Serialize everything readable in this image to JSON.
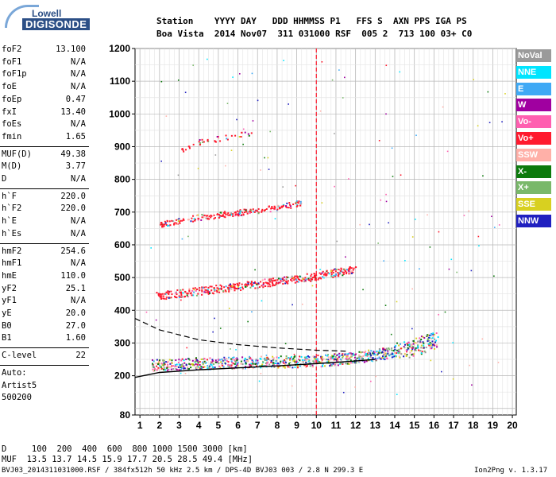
{
  "logo": {
    "top": "Lowell",
    "bottom": "DIGISONDE"
  },
  "header": {
    "row1": "Station    YYYY DAY   DDD HHMMSS P1   FFS S  AXN PPS IGA PS",
    "row2": "Boa Vista  2014 Nov07  311 031000 RSF  005 2  713 100 03+ C0"
  },
  "params_group1": [
    {
      "name": "foF2",
      "value": "13.100"
    },
    {
      "name": "foF1",
      "value": "N/A"
    },
    {
      "name": "foF1p",
      "value": "N/A"
    },
    {
      "name": "foE",
      "value": "N/A"
    },
    {
      "name": "foEp",
      "value": "0.47"
    },
    {
      "name": "fxI",
      "value": "13.40"
    },
    {
      "name": "foEs",
      "value": "N/A"
    },
    {
      "name": "fmin",
      "value": "1.65"
    }
  ],
  "params_group2": [
    {
      "name": "MUF(D)",
      "value": "49.38"
    },
    {
      "name": "M(D)",
      "value": "3.77"
    },
    {
      "name": "D",
      "value": "N/A"
    }
  ],
  "params_group3": [
    {
      "name": "h`F",
      "value": "220.0"
    },
    {
      "name": "h`F2",
      "value": "220.0"
    },
    {
      "name": "h`E",
      "value": "N/A"
    },
    {
      "name": "h`Es",
      "value": "N/A"
    }
  ],
  "params_group4": [
    {
      "name": "hmF2",
      "value": "254.6"
    },
    {
      "name": "hmF1",
      "value": "N/A"
    },
    {
      "name": "hmE",
      "value": "110.0"
    },
    {
      "name": "yF2",
      "value": "25.1"
    },
    {
      "name": "yF1",
      "value": "N/A"
    },
    {
      "name": "yE",
      "value": "20.0"
    },
    {
      "name": "B0",
      "value": "27.0"
    },
    {
      "name": "B1",
      "value": "1.60"
    }
  ],
  "c_level": {
    "name": "C-level",
    "value": "22"
  },
  "auto": {
    "line1": "Auto:",
    "line2": "Artist5",
    "line3": "500200"
  },
  "footer": {
    "d_row": "D     100  200  400  600  800 1000 1500 3000 [km]",
    "muf_row": "MUF  13.5 13.7 14.5 15.9 17.7 20.5 28.5 49.4 [MHz]",
    "file_row": "BVJ03_2014311031000.RSF / 384fx512h 50 kHz 2.5 km / DPS-4D BVJ03 003 / 2.8 N 299.3 E",
    "version": "Ion2Png v. 1.3.17"
  },
  "legend": [
    {
      "label": "NoVal",
      "color": "#9a9a9a"
    },
    {
      "label": "NNE",
      "color": "#00e5ff"
    },
    {
      "label": "E",
      "color": "#3fa9f5"
    },
    {
      "label": "W",
      "color": "#a000a0"
    },
    {
      "label": "Vo-",
      "color": "#ff5fb0"
    },
    {
      "label": "Vo+",
      "color": "#ff1a2e"
    },
    {
      "label": "SSW",
      "color": "#ffb0a8"
    },
    {
      "label": "X-",
      "color": "#0c7a0c"
    },
    {
      "label": "X+",
      "color": "#79b86a"
    },
    {
      "label": "SSE",
      "color": "#d8d020"
    },
    {
      "label": "NNW",
      "color": "#2020c0"
    }
  ],
  "chart_data": {
    "type": "scatter",
    "xlim": [
      0.75,
      20.2
    ],
    "ylim": [
      80,
      1200
    ],
    "x_ticks": [
      "1",
      "2",
      "3",
      "4",
      "5",
      "6",
      "7",
      "8",
      "9",
      "10",
      "11",
      "12",
      "13",
      "14",
      "15",
      "16",
      "17",
      "18",
      "19",
      "20"
    ],
    "y_ticks": [
      "80",
      "200",
      "300",
      "400",
      "500",
      "600",
      "700",
      "800",
      "900",
      "1000",
      "1100",
      "1200"
    ],
    "grid": true,
    "traces": [
      {
        "name": "F2 trace 1st hop",
        "x": [
          1.6,
          3,
          5,
          7,
          9,
          10,
          11,
          12,
          13,
          14,
          15,
          16.2
        ],
        "y": [
          235,
          238,
          240,
          243,
          245,
          247,
          252,
          258,
          265,
          275,
          290,
          310
        ]
      },
      {
        "name": "F2 trace 2nd hop",
        "x": [
          1.8,
          4,
          6,
          8,
          10,
          12
        ],
        "y": [
          445,
          460,
          475,
          490,
          505,
          530
        ]
      },
      {
        "name": "F2 trace 3rd hop",
        "x": [
          2,
          4,
          6,
          8,
          9.2
        ],
        "y": [
          665,
          685,
          700,
          715,
          730
        ]
      },
      {
        "name": "upper scatter",
        "x": [
          3,
          3.4,
          4,
          5.8,
          6.7
        ],
        "y": [
          890,
          900,
          915,
          935,
          945
        ]
      },
      {
        "name": "solid profile",
        "x": [
          0.75,
          2,
          4,
          6,
          8,
          10,
          12,
          13
        ],
        "y": [
          195,
          210,
          218,
          224,
          230,
          237,
          245,
          250
        ]
      },
      {
        "name": "dashed profile",
        "x": [
          0.75,
          2,
          4,
          6,
          8,
          10,
          11.5
        ],
        "y": [
          375,
          340,
          310,
          295,
          285,
          278,
          275
        ]
      }
    ],
    "vertical_line": {
      "x": 10,
      "color": "#ff1a2e"
    }
  }
}
